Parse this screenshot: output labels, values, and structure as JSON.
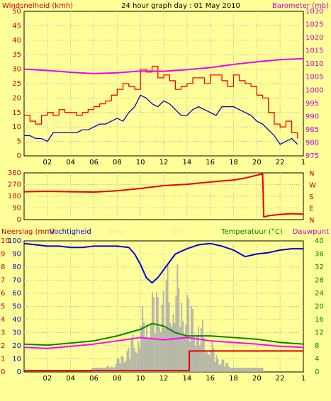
{
  "title": "24 hour graph day : 01 May 2010",
  "colors": {
    "background": "#ffff99",
    "plot_area": "#ffff99",
    "wind_avg": "#0000cc",
    "wind_gust": "#ff0000",
    "barometer": "#ee00ee",
    "direction": "#ee0000",
    "humidity": "#0000dd",
    "temperature": "#008800",
    "dewpoint": "#ff00ff",
    "solar": "#aaaaaa",
    "uv": "#99ccff",
    "rain": "#dd0000"
  },
  "chart_data": [
    {
      "type": "line",
      "title": "24 hour graph day : 01 May 2010",
      "x_tick_labels": [
        "02",
        "04",
        "06",
        "08",
        "10",
        "12",
        "14",
        "16",
        "18",
        "20",
        "22",
        "1"
      ],
      "x_range_hours": [
        0,
        24
      ],
      "left_axis": {
        "label": "Windsnelheid (kmh)",
        "range": [
          0,
          50
        ],
        "ticks": [
          "0",
          "5",
          "10",
          "15",
          "20",
          "25",
          "30",
          "35",
          "40",
          "45",
          "50"
        ]
      },
      "right_axis": {
        "label": "Barometer (mb)",
        "range": [
          975,
          1030
        ],
        "ticks": [
          "975",
          "980",
          "985",
          "990",
          "995",
          "1000",
          "1005",
          "1010",
          "1015",
          "1020",
          "1025",
          "1030"
        ]
      },
      "grid": true,
      "series": [
        {
          "key": "wind_gust",
          "axis": "left",
          "x": [
            0,
            0.5,
            1,
            1.5,
            2,
            2.5,
            3,
            3.5,
            4,
            4.5,
            5,
            5.5,
            6,
            6.5,
            7,
            7.5,
            8,
            8.5,
            9,
            9.5,
            10,
            10.5,
            11,
            11.5,
            12,
            12.5,
            13,
            13.5,
            14,
            14.5,
            15,
            15.5,
            16,
            16.5,
            17,
            17.5,
            18,
            18.5,
            19,
            19.5,
            20,
            20.5,
            21,
            21.5,
            22,
            22.5,
            23,
            23.5
          ],
          "y": [
            14,
            12,
            11,
            14,
            15,
            14,
            16,
            15,
            15,
            14,
            15,
            16,
            17,
            18,
            19,
            21,
            23,
            25,
            24,
            23,
            30,
            29,
            31,
            27,
            28,
            26,
            23,
            24,
            25,
            27,
            27,
            25,
            28,
            28,
            26,
            24,
            28,
            26,
            25,
            24,
            21,
            20,
            15,
            11,
            10,
            12,
            8,
            6
          ]
        },
        {
          "key": "wind_avg",
          "axis": "left",
          "x": [
            0,
            0.5,
            1,
            1.5,
            2,
            2.5,
            3,
            3.5,
            4,
            4.5,
            5,
            5.5,
            6,
            6.5,
            7,
            7.5,
            8,
            8.5,
            9,
            9.5,
            10,
            10.5,
            11,
            11.5,
            12,
            12.5,
            13,
            13.5,
            14,
            14.5,
            15,
            15.5,
            16,
            16.5,
            17,
            17.5,
            18,
            18.5,
            19,
            19.5,
            20,
            20.5,
            21,
            21.5,
            22,
            22.5,
            23,
            23.5
          ],
          "y": [
            7,
            7,
            6,
            6,
            5,
            8,
            8,
            8,
            8,
            8,
            9,
            9,
            10,
            11,
            11,
            12,
            13,
            12,
            15,
            17,
            21,
            20,
            18,
            17,
            19,
            18,
            16,
            14,
            14,
            16,
            17,
            16,
            15,
            14,
            17,
            17,
            17,
            16,
            15,
            14,
            12,
            11,
            9,
            7,
            4,
            5,
            6,
            4
          ]
        },
        {
          "key": "barometer",
          "axis": "right",
          "x": [
            0,
            2,
            4,
            6,
            8,
            10,
            12,
            14,
            16,
            18,
            20,
            22,
            24
          ],
          "y": [
            1008,
            1007.5,
            1006.8,
            1006.3,
            1006.6,
            1007.3,
            1007.2,
            1007.8,
            1008.6,
            1009.8,
            1010.8,
            1011.6,
            1012
          ]
        }
      ]
    },
    {
      "type": "line",
      "left_axis": {
        "range": [
          0,
          360
        ],
        "ticks": [
          "0",
          "90",
          "180",
          "270",
          "360"
        ]
      },
      "right_axis_labels": [
        "N",
        "W",
        "S",
        "E",
        "N"
      ],
      "series": [
        {
          "key": "direction",
          "x": [
            0,
            2,
            4,
            6,
            8,
            10,
            12,
            14,
            16,
            18,
            19,
            20,
            20.5,
            20.6,
            21,
            22,
            23,
            24
          ],
          "y": [
            215,
            218,
            215,
            212,
            222,
            240,
            262,
            272,
            290,
            305,
            320,
            342,
            352,
            20,
            30,
            40,
            46,
            42
          ]
        }
      ]
    },
    {
      "type": "line",
      "left_axis": {
        "label": "Neerslag (mm)",
        "range": [
          0,
          10
        ],
        "ticks": [
          "0",
          "1",
          "2",
          "3",
          "4",
          "5",
          "6",
          "7",
          "8",
          "9",
          "10"
        ]
      },
      "left_axis_2": {
        "label": "Vochtigheid",
        "range": [
          0,
          100
        ],
        "ticks": [
          "0",
          "10",
          "20",
          "30",
          "40",
          "50",
          "60",
          "70",
          "80",
          "90",
          "100"
        ]
      },
      "right_axis": {
        "label": "Temperatuur (°C)",
        "range": [
          0,
          40
        ],
        "ticks": [
          "0",
          "4",
          "8",
          "12",
          "16",
          "20",
          "24",
          "28",
          "32",
          "36",
          "40"
        ]
      },
      "right_label_2": "Dauwpunt",
      "hidden_labels": [
        "Solar",
        "UV"
      ],
      "series": [
        {
          "key": "humidity",
          "x": [
            0,
            1,
            2,
            3,
            4,
            5,
            6,
            7,
            8,
            9,
            9.5,
            10,
            10.5,
            11,
            11.5,
            12,
            12.5,
            13,
            14,
            15,
            16,
            17,
            18,
            19,
            20,
            21,
            22,
            23,
            24
          ],
          "y": [
            98,
            97,
            96,
            96,
            95,
            95,
            96,
            96,
            96,
            95,
            90,
            82,
            72,
            68,
            72,
            78,
            84,
            90,
            94,
            97,
            98,
            96,
            93,
            88,
            90,
            91,
            93,
            94,
            94
          ]
        },
        {
          "key": "temperature",
          "x": [
            0,
            2,
            4,
            6,
            8,
            10,
            11,
            12,
            13,
            14,
            16,
            18,
            20,
            22,
            24
          ],
          "y": [
            8.5,
            8.2,
            8.8,
            9.5,
            11,
            13,
            14.8,
            14,
            12,
            11,
            11,
            10.5,
            10,
            9,
            8.5
          ]
        },
        {
          "key": "dewpoint",
          "x": [
            0,
            2,
            4,
            6,
            8,
            10,
            12,
            14,
            16,
            18,
            20,
            22,
            24
          ],
          "y": [
            7.5,
            7.2,
            7.8,
            8.5,
            9.5,
            10.5,
            9.8,
            10.5,
            9.5,
            9,
            8.5,
            7.8,
            7.5
          ]
        },
        {
          "key": "rain",
          "x": [
            0,
            13.6,
            14.2,
            20.5,
            24
          ],
          "y": [
            0.1,
            0.1,
            1.6,
            1.6,
            1.6
          ]
        }
      ]
    }
  ]
}
